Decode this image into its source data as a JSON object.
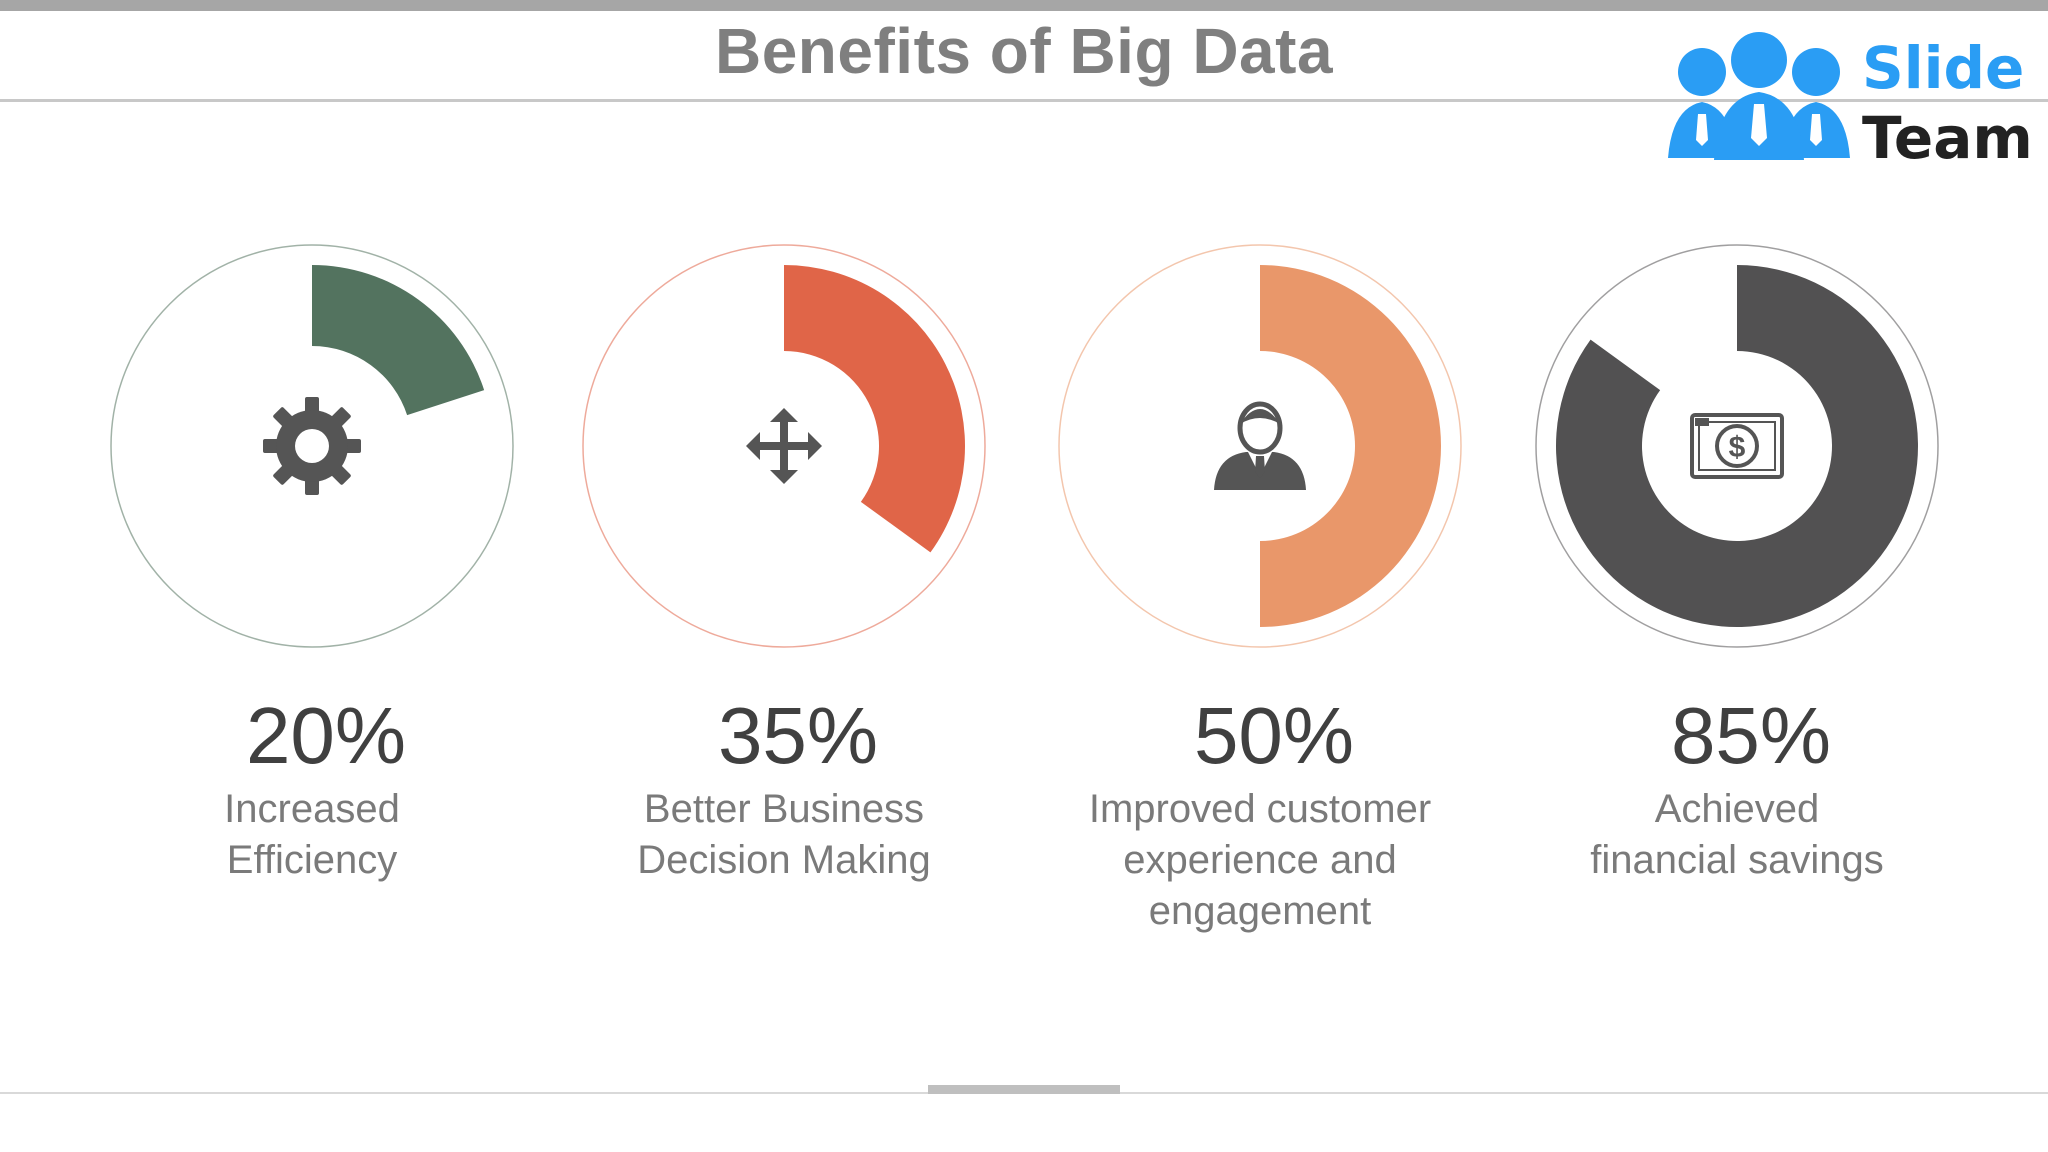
{
  "title": "Benefits of Big Data",
  "logo": {
    "word1": "Slide",
    "word2": "Team",
    "word1_color": "#2a9df4",
    "word2_color": "#222222"
  },
  "chart_data": {
    "type": "pie",
    "ring_color": "#d0d0d0",
    "items": [
      {
        "value": 20,
        "label": "20%",
        "caption_lines": [
          "Increased",
          "Efficiency"
        ],
        "color": "#53735f",
        "icon": "gear-icon"
      },
      {
        "value": 35,
        "label": "35%",
        "caption_lines": [
          "Better Business",
          "Decision Making"
        ],
        "color": "#e06548",
        "icon": "move-arrows-icon"
      },
      {
        "value": 50,
        "label": "50%",
        "caption_lines": [
          "Improved customer",
          "experience and",
          "engagement"
        ],
        "color": "#e9976a",
        "icon": "businessman-icon"
      },
      {
        "value": 85,
        "label": "85%",
        "caption_lines": [
          "Achieved",
          "financial savings"
        ],
        "color": "#525152",
        "icon": "dollar-bill-icon"
      }
    ]
  }
}
